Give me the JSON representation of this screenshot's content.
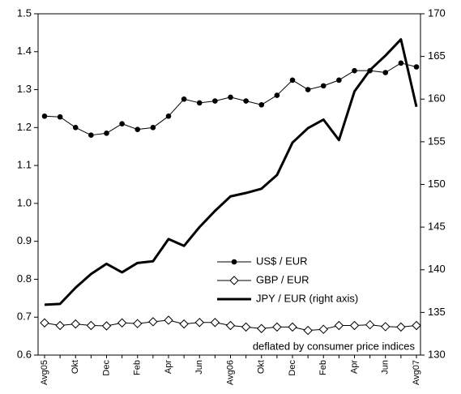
{
  "chart_data": {
    "type": "line",
    "categories": [
      "Avg05",
      null,
      "Okt",
      null,
      "Dec",
      null,
      "Feb",
      null,
      "Apr",
      null,
      "Jun",
      null,
      "Avg06",
      null,
      "Okt",
      null,
      "Dec",
      null,
      "Feb",
      null,
      "Apr",
      null,
      "Jun",
      null,
      "Avg07"
    ],
    "ylim": [
      0.6,
      1.5
    ],
    "yticks": [
      0.6,
      0.7,
      0.8,
      0.9,
      {
        "value": 1,
        "label": "1.0"
      },
      1.1,
      1.2,
      1.3,
      1.4,
      1.5
    ],
    "y2lim": [
      130,
      170
    ],
    "y2ticks": [
      130,
      135,
      140,
      145,
      150,
      155,
      160,
      165,
      170
    ],
    "annotation": "deflated by consumer price indices",
    "series": [
      {
        "name": "US$ / EUR",
        "color": "#000000",
        "marker": "circle",
        "linewidth": 1,
        "values": [
          1.23,
          1.228,
          1.2,
          1.18,
          1.185,
          1.21,
          1.195,
          1.2,
          1.23,
          1.275,
          1.265,
          1.27,
          1.28,
          1.27,
          1.26,
          1.285,
          1.325,
          1.3,
          1.31,
          1.325,
          1.35,
          1.35,
          1.345,
          1.37,
          1.36
        ]
      },
      {
        "name": "GBP / EUR",
        "color": "#000000",
        "marker": "diamond",
        "linewidth": 1,
        "values": [
          0.685,
          0.678,
          0.682,
          0.678,
          0.677,
          0.685,
          0.683,
          0.688,
          0.692,
          0.682,
          0.686,
          0.686,
          0.678,
          0.674,
          0.67,
          0.674,
          0.674,
          0.665,
          0.668,
          0.678,
          0.678,
          0.68,
          0.675,
          0.674,
          0.678
        ]
      },
      {
        "name": "JPY / EUR (right axis)",
        "color": "#000000",
        "marker": "none",
        "linewidth": 3,
        "axis": "y2",
        "values": [
          135.9,
          136,
          137.9,
          139.5,
          140.7,
          139.7,
          140.8,
          141,
          143.6,
          142.8,
          145,
          146.9,
          148.6,
          149,
          149.5,
          151.1,
          154.9,
          156.6,
          157.6,
          155.2,
          160.9,
          163.4,
          165.1,
          167,
          159.1
        ]
      }
    ],
    "legend": "lower-center"
  }
}
